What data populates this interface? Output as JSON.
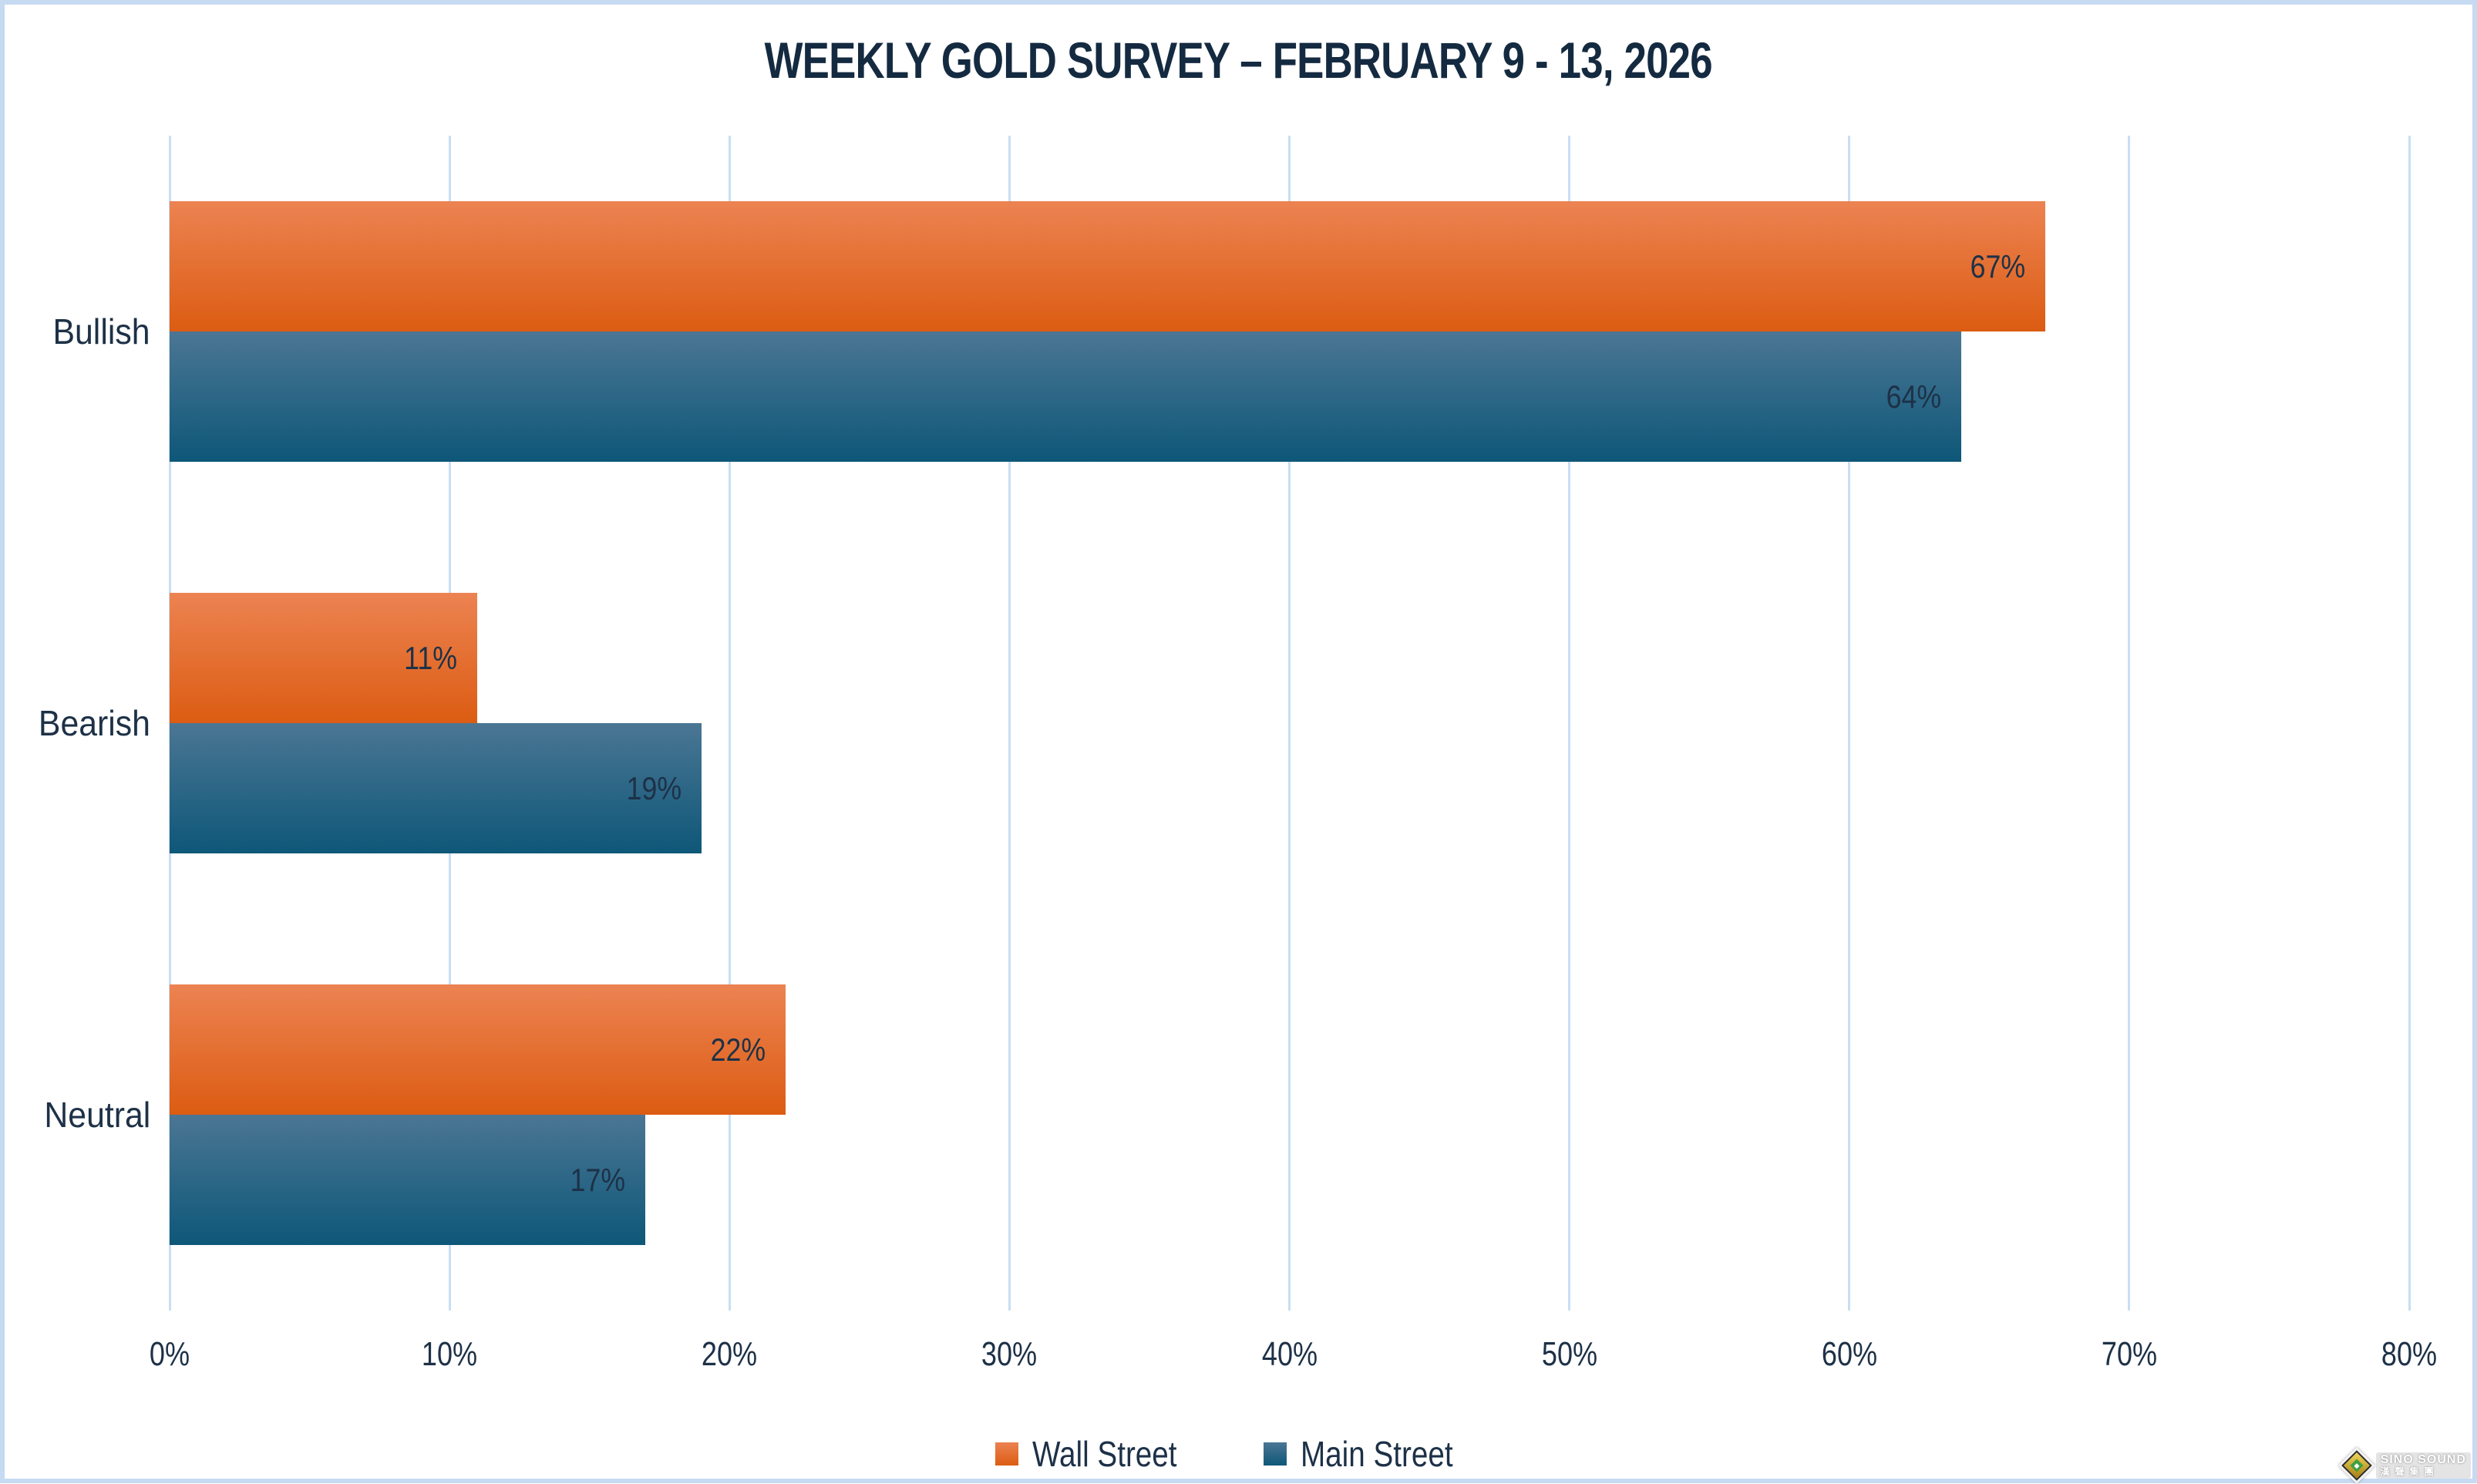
{
  "title": "WEEKLY GOLD SURVEY – FEBRUARY 9 - 13, 2026",
  "chart_data": {
    "type": "bar",
    "orientation": "horizontal",
    "title": "WEEKLY GOLD SURVEY – FEBRUARY 9 - 13, 2026",
    "categories": [
      "Bullish",
      "Bearish",
      "Neutral"
    ],
    "series": [
      {
        "name": "Wall Street",
        "values": [
          67,
          11,
          22
        ],
        "color_top": "#ec8352",
        "color_bottom": "#dc5c12",
        "legend_color": "#e8742f"
      },
      {
        "name": "Main Street",
        "values": [
          64,
          19,
          17
        ],
        "color_top": "#4b7694",
        "color_bottom": "#0e5778",
        "legend_color": "#206185"
      }
    ],
    "value_suffix": "%",
    "data_labels_visible": true,
    "x_ticks": [
      "0%",
      "10%",
      "20%",
      "30%",
      "40%",
      "50%",
      "60%",
      "70%",
      "80%"
    ],
    "xlim": [
      0,
      80
    ],
    "xlabel": "",
    "ylabel": "",
    "grid": true,
    "gridline_color": "#c9def4",
    "legend_position": "bottom",
    "text_color": "#1d3147",
    "title_color": "#142a40",
    "border_color": "#c6daf1",
    "background_color": "#ffffff"
  },
  "watermark": {
    "line1": "SINO SOUND",
    "line2": "漢聲集團"
  }
}
